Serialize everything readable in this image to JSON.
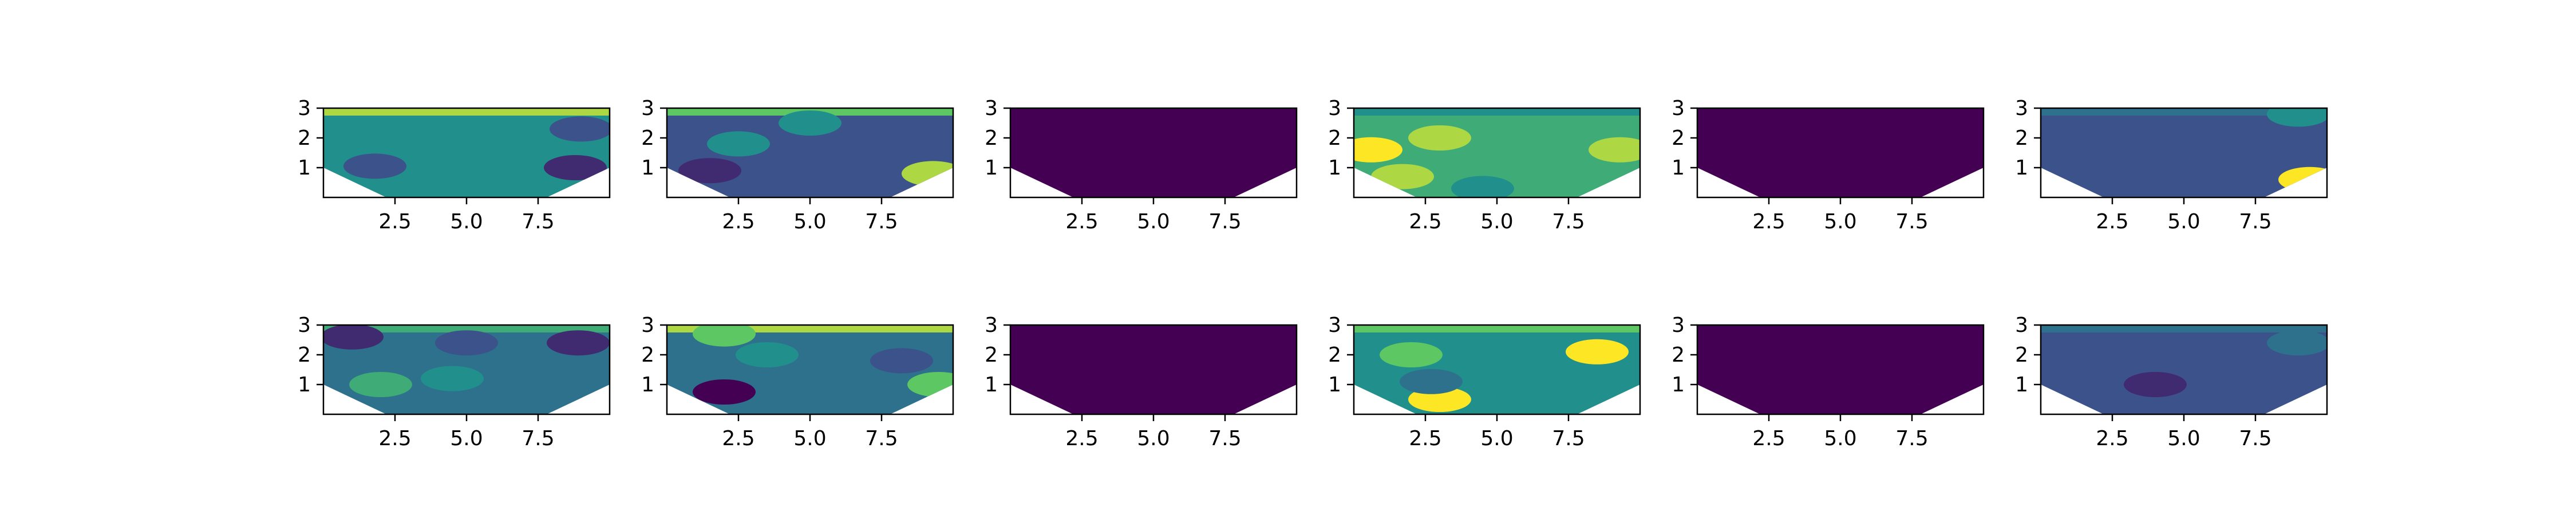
{
  "chart_data": {
    "type": "heatmap",
    "grid": false,
    "colormap": "viridis",
    "colors": {
      "axes_edge": "#000000",
      "background": "#ffffff",
      "viridis": [
        "#440154",
        "#3b528b",
        "#21908d",
        "#5dc863",
        "#fde725"
      ]
    },
    "xlim": [
      0,
      10
    ],
    "ylim": [
      0,
      3
    ],
    "x_ticks": [
      "2.5",
      "5.0",
      "7.5"
    ],
    "y_ticks": [
      "1",
      "2",
      "3"
    ],
    "subplots": [
      {
        "row": 0,
        "col": 0,
        "base_level": 0.5,
        "top_band_level": 0.92,
        "patches": [
          {
            "x": 4.5,
            "y": 1.5,
            "level": 0.52
          },
          {
            "x": 1.8,
            "y": 1.05,
            "level": 0.3
          },
          {
            "x": 8.8,
            "y": 1.0,
            "level": 0.15
          },
          {
            "x": 9.0,
            "y": 2.3,
            "level": 0.3
          }
        ]
      },
      {
        "row": 0,
        "col": 1,
        "base_level": 0.3,
        "top_band_level": 0.8,
        "patches": [
          {
            "x": 5.0,
            "y": 2.5,
            "level": 0.55
          },
          {
            "x": 1.5,
            "y": 0.9,
            "level": 0.1
          },
          {
            "x": 9.3,
            "y": 0.8,
            "level": 0.9
          },
          {
            "x": 2.5,
            "y": 1.8,
            "level": 0.45
          }
        ]
      },
      {
        "row": 0,
        "col": 2,
        "base_level": 0.0,
        "top_band_level": 0.0,
        "patches": []
      },
      {
        "row": 0,
        "col": 3,
        "base_level": 0.68,
        "top_band_level": 0.5,
        "patches": [
          {
            "x": 3.0,
            "y": 2.0,
            "level": 0.88
          },
          {
            "x": 0.6,
            "y": 1.6,
            "level": 0.98
          },
          {
            "x": 9.3,
            "y": 1.6,
            "level": 0.9
          },
          {
            "x": 1.7,
            "y": 0.7,
            "level": 0.85
          },
          {
            "x": 4.5,
            "y": 0.3,
            "level": 0.5
          }
        ]
      },
      {
        "row": 0,
        "col": 4,
        "base_level": 0.0,
        "top_band_level": 0.0,
        "patches": []
      },
      {
        "row": 0,
        "col": 5,
        "base_level": 0.25,
        "top_band_level": 0.4,
        "patches": [
          {
            "x": 9.4,
            "y": 0.6,
            "level": 0.95
          },
          {
            "x": 9.0,
            "y": 2.8,
            "level": 0.45
          },
          {
            "x": 4.5,
            "y": 1.5,
            "level": 0.25
          }
        ]
      },
      {
        "row": 1,
        "col": 0,
        "base_level": 0.32,
        "top_band_level": 0.6,
        "patches": [
          {
            "x": 4.5,
            "y": 1.2,
            "level": 0.5
          },
          {
            "x": 8.9,
            "y": 2.4,
            "level": 0.1
          },
          {
            "x": 2.0,
            "y": 1.0,
            "level": 0.6
          },
          {
            "x": 5.0,
            "y": 2.4,
            "level": 0.25
          },
          {
            "x": 1.0,
            "y": 2.6,
            "level": 0.18
          }
        ]
      },
      {
        "row": 1,
        "col": 1,
        "base_level": 0.35,
        "top_band_level": 0.9,
        "patches": [
          {
            "x": 3.5,
            "y": 2.0,
            "level": 0.55
          },
          {
            "x": 2.0,
            "y": 0.75,
            "level": 0.05
          },
          {
            "x": 8.2,
            "y": 1.8,
            "level": 0.2
          },
          {
            "x": 9.5,
            "y": 1.0,
            "level": 0.7
          },
          {
            "x": 2.0,
            "y": 2.7,
            "level": 0.75
          }
        ]
      },
      {
        "row": 1,
        "col": 2,
        "base_level": 0.0,
        "top_band_level": 0.0,
        "patches": []
      },
      {
        "row": 1,
        "col": 3,
        "base_level": 0.55,
        "top_band_level": 0.75,
        "patches": [
          {
            "x": 8.5,
            "y": 2.1,
            "level": 0.97
          },
          {
            "x": 2.0,
            "y": 2.0,
            "level": 0.8
          },
          {
            "x": 3.0,
            "y": 0.5,
            "level": 0.95
          },
          {
            "x": 2.7,
            "y": 1.1,
            "level": 0.35
          }
        ]
      },
      {
        "row": 1,
        "col": 4,
        "base_level": 0.0,
        "top_band_level": 0.0,
        "patches": []
      },
      {
        "row": 1,
        "col": 5,
        "base_level": 0.3,
        "top_band_level": 0.35,
        "patches": [
          {
            "x": 4.0,
            "y": 1.0,
            "level": 0.12
          },
          {
            "x": 9.0,
            "y": 2.4,
            "level": 0.32
          }
        ]
      }
    ]
  }
}
